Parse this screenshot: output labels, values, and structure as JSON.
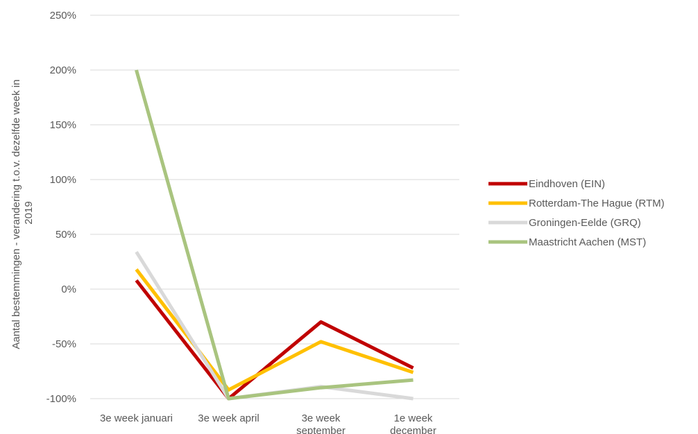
{
  "chart_data": {
    "type": "line",
    "categories": [
      [
        "3e week januari"
      ],
      [
        "3e week april"
      ],
      [
        "3e week",
        "september"
      ],
      [
        "1e week",
        "december"
      ]
    ],
    "ylabel": [
      "Aantal bestemmingen - verandering t.o.v. dezelfde week in",
      "2019"
    ],
    "ylim": [
      -100,
      250
    ],
    "yticks": [
      -100,
      -50,
      0,
      50,
      100,
      150,
      200,
      250
    ],
    "ytick_labels": [
      "-100%",
      "-50%",
      "0%",
      "50%",
      "100%",
      "150%",
      "200%",
      "250%"
    ],
    "grid": true,
    "legend_position": "right",
    "series": [
      {
        "name": "Eindhoven (EIN)",
        "color": "#c00000",
        "values": [
          8,
          -100,
          -30,
          -72
        ]
      },
      {
        "name": "Rotterdam-The Hague (RTM)",
        "color": "#ffc000",
        "values": [
          18,
          -92,
          -48,
          -76
        ]
      },
      {
        "name": "Groningen-Eelde (GRQ)",
        "color": "#d9d9d9",
        "values": [
          34,
          -100,
          -89,
          -100
        ]
      },
      {
        "name": "Maastricht Aachen (MST)",
        "color": "#a9c47f",
        "values": [
          200,
          -100,
          -90,
          -83
        ]
      }
    ]
  }
}
